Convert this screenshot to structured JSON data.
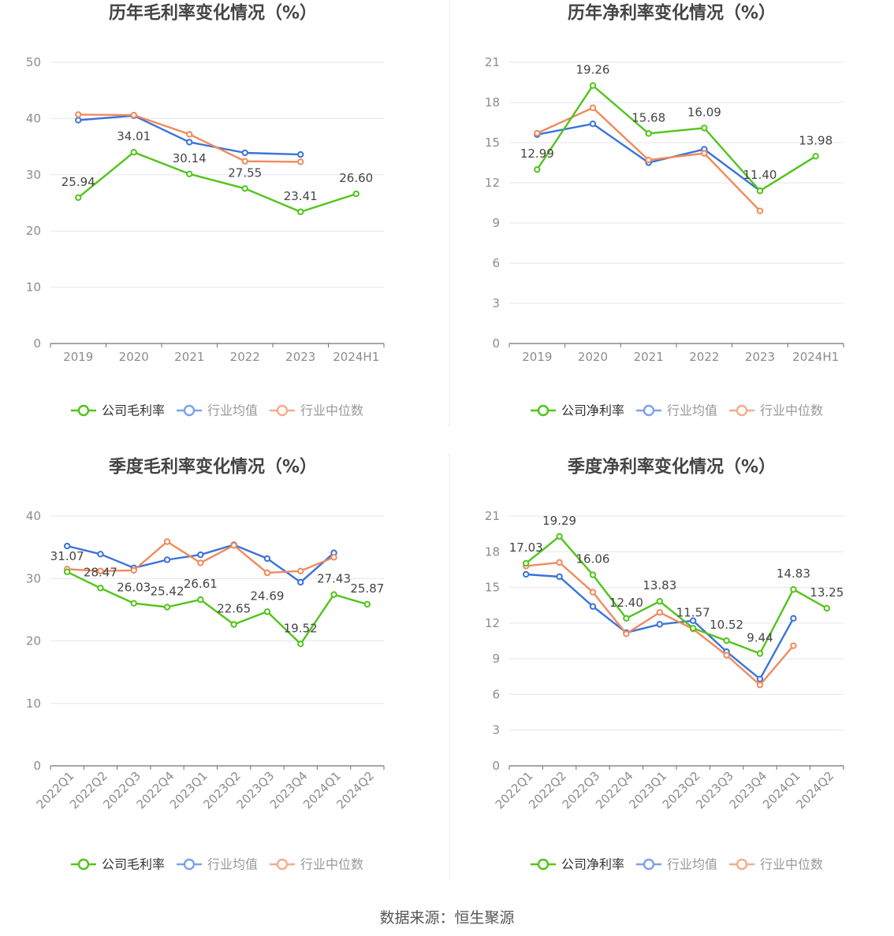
{
  "source_text": "数据来源：恒生聚源",
  "colors": {
    "company": "#52c41a",
    "avg": "#3b73d9",
    "median": "#f08a5d",
    "grid": "#e3e6ef",
    "axis": "#6e7079",
    "tick": "#8c8c8c",
    "label": "#444444",
    "title": "#444444"
  },
  "chart_data": [
    {
      "type": "line",
      "title": "历年毛利率变化情况（%）",
      "categories": [
        "2019",
        "2020",
        "2021",
        "2022",
        "2023",
        "2024H1"
      ],
      "yticks": [
        0,
        10,
        20,
        30,
        40,
        50
      ],
      "ylim": [
        0,
        50
      ],
      "series": [
        {
          "name": "公司毛利率",
          "role": "company",
          "values": [
            25.94,
            34.01,
            30.14,
            27.55,
            23.41,
            26.6
          ],
          "labels": [
            "25.94",
            "34.01",
            "30.14",
            "27.55",
            "23.41",
            "26.60"
          ]
        },
        {
          "name": "行业均值",
          "role": "avg",
          "values": [
            39.7,
            40.5,
            35.8,
            33.9,
            33.6,
            null
          ]
        },
        {
          "name": "行业中位数",
          "role": "median",
          "values": [
            40.7,
            40.6,
            37.2,
            32.4,
            32.3,
            null
          ]
        }
      ]
    },
    {
      "type": "line",
      "title": "历年净利率变化情况（%）",
      "categories": [
        "2019",
        "2020",
        "2021",
        "2022",
        "2023",
        "2024H1"
      ],
      "yticks": [
        0,
        3,
        6,
        9,
        12,
        15,
        18,
        21
      ],
      "ylim": [
        0,
        21
      ],
      "series": [
        {
          "name": "公司净利率",
          "role": "company",
          "values": [
            12.99,
            19.26,
            15.68,
            16.09,
            11.4,
            13.98
          ],
          "labels": [
            "12.99",
            "19.26",
            "15.68",
            "16.09",
            "11.40",
            "13.98"
          ]
        },
        {
          "name": "行业均值",
          "role": "avg",
          "values": [
            15.6,
            16.4,
            13.5,
            14.5,
            11.4,
            null
          ]
        },
        {
          "name": "行业中位数",
          "role": "median",
          "values": [
            15.7,
            17.6,
            13.7,
            14.2,
            9.9,
            null
          ]
        }
      ]
    },
    {
      "type": "line",
      "title": "季度毛利率变化情况（%）",
      "categories": [
        "2022Q1",
        "2022Q2",
        "2022Q3",
        "2022Q4",
        "2023Q1",
        "2023Q2",
        "2023Q3",
        "2023Q4",
        "2024Q1",
        "2024Q2"
      ],
      "yticks": [
        0,
        10,
        20,
        30,
        40
      ],
      "ylim": [
        0,
        40
      ],
      "series": [
        {
          "name": "公司毛利率",
          "role": "company",
          "values": [
            31.07,
            28.47,
            26.03,
            25.42,
            26.61,
            22.65,
            24.69,
            19.52,
            27.43,
            25.87
          ],
          "labels": [
            "31.07",
            "28.47",
            "26.03",
            "25.42",
            "26.61",
            "22.65",
            "24.69",
            "19.52",
            "27.43",
            "25.87"
          ]
        },
        {
          "name": "行业均值",
          "role": "avg",
          "values": [
            35.2,
            33.9,
            31.7,
            33.0,
            33.8,
            35.4,
            33.2,
            29.4,
            34.1,
            null
          ]
        },
        {
          "name": "行业中位数",
          "role": "median",
          "values": [
            31.5,
            31.2,
            31.3,
            35.9,
            32.5,
            35.3,
            30.9,
            31.2,
            33.4,
            null
          ]
        }
      ]
    },
    {
      "type": "line",
      "title": "季度净利率变化情况（%）",
      "categories": [
        "2022Q1",
        "2022Q2",
        "2022Q3",
        "2022Q4",
        "2023Q1",
        "2023Q2",
        "2023Q3",
        "2023Q4",
        "2024Q1",
        "2024Q2"
      ],
      "yticks": [
        0,
        3,
        6,
        9,
        12,
        15,
        18,
        21
      ],
      "ylim": [
        0,
        21
      ],
      "series": [
        {
          "name": "公司净利率",
          "role": "company",
          "values": [
            17.03,
            19.29,
            16.06,
            12.4,
            13.83,
            11.57,
            10.52,
            9.44,
            14.83,
            13.25
          ],
          "labels": [
            "17.03",
            "19.29",
            "16.06",
            "12.40",
            "13.83",
            "11.57",
            "10.52",
            "9.44",
            "14.83",
            "13.25"
          ]
        },
        {
          "name": "行业均值",
          "role": "avg",
          "values": [
            16.1,
            15.9,
            13.4,
            11.2,
            11.9,
            12.2,
            9.6,
            7.3,
            12.4,
            null
          ]
        },
        {
          "name": "行业中位数",
          "role": "median",
          "values": [
            16.8,
            17.1,
            14.6,
            11.1,
            12.9,
            11.5,
            9.3,
            6.8,
            10.1,
            null
          ]
        }
      ]
    }
  ]
}
